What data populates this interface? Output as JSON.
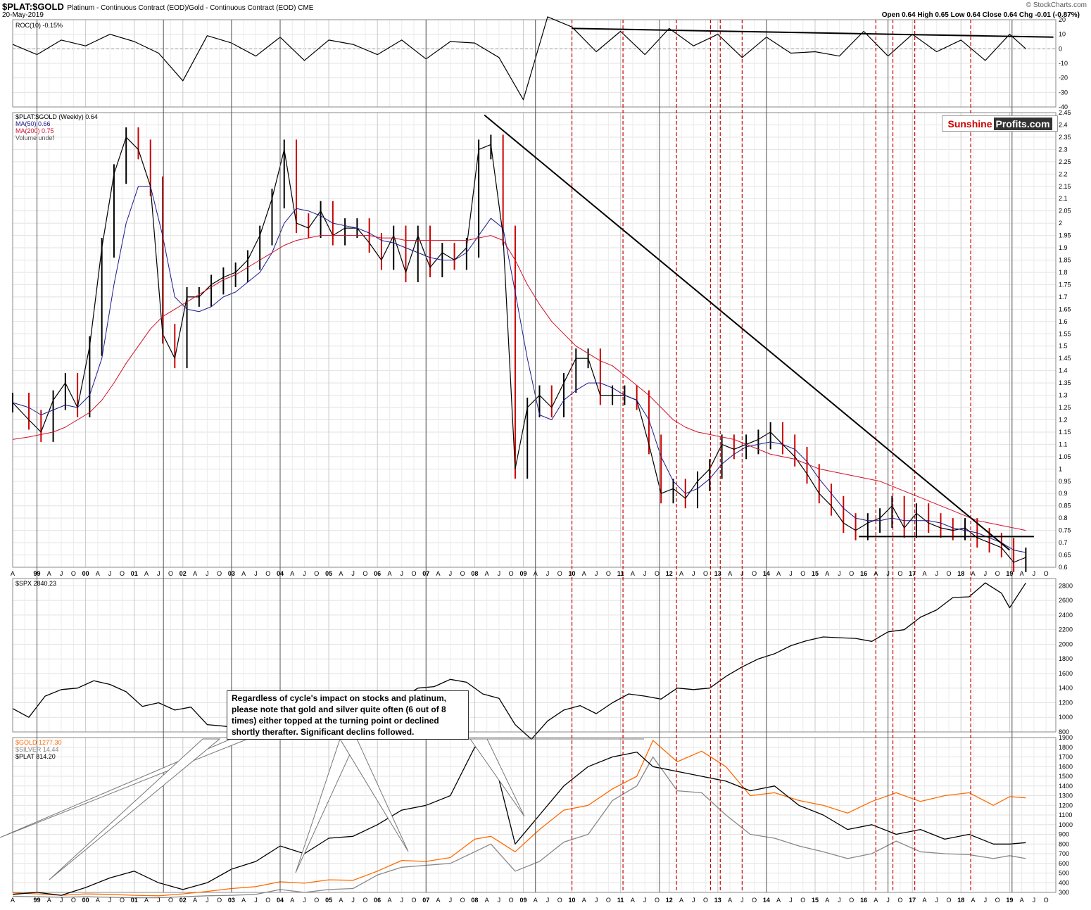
{
  "header": {
    "symbol": "$PLAT:$GOLD",
    "description": "Platinum - Continuous Contract (EOD)/Gold - Continuous Contract (EOD) CME",
    "date": "20-May-2019",
    "watermark": "© StockCharts.com",
    "ohlc": "Open 0.64 High 0.65 Low 0.64 Close 0.64 Chg -0.01 (-0.87%)"
  },
  "logo": {
    "sunshine": "Sunshine",
    "profits": "Profits.com"
  },
  "annotation": "Regardless of cycle's impact on stocks and platinum, please note that gold and silver quite often (6 out of 8 times) either topped at the turning point or declined shortly therafter. Significant declins followed.",
  "colors": {
    "gold": "#ff6a00",
    "silver": "#888888",
    "plat": "#000000",
    "ma50": "#1a1a8c",
    "ma200": "#d0102a",
    "cycle": "#cc0000",
    "down_candle": "#cc0000"
  },
  "chart_data": [
    {
      "type": "line",
      "title": "ROC(10) -0.15%",
      "ylim": [
        -40,
        20
      ],
      "yticks": [
        20,
        10,
        0,
        -10,
        -20,
        -30,
        -40
      ],
      "x": [
        "1998-07",
        "1999-01",
        "1999-07",
        "2000-01",
        "2000-07",
        "2001-01",
        "2001-07",
        "2002-01",
        "2002-07",
        "2003-01",
        "2003-07",
        "2004-01",
        "2004-07",
        "2005-01",
        "2005-07",
        "2006-01",
        "2006-07",
        "2007-01",
        "2007-07",
        "2008-01",
        "2008-07",
        "2009-01",
        "2009-07",
        "2010-01",
        "2010-07",
        "2011-01",
        "2011-07",
        "2012-01",
        "2012-07",
        "2013-01",
        "2013-07",
        "2014-01",
        "2014-07",
        "2015-01",
        "2015-07",
        "2016-01",
        "2016-07",
        "2017-01",
        "2017-07",
        "2018-01",
        "2018-07",
        "2019-01",
        "2019-05"
      ],
      "series": [
        {
          "values": [
            3,
            -4,
            6,
            2,
            10,
            5,
            -3,
            -22,
            9,
            4,
            -5,
            8,
            -8,
            6,
            3,
            -4,
            6,
            -7,
            5,
            4,
            -6,
            -35,
            22,
            15,
            -2,
            12,
            -4,
            14,
            2,
            10,
            -6,
            8,
            -3,
            -2,
            -5,
            12,
            -5,
            10,
            -2,
            6,
            -8,
            10,
            0
          ]
        }
      ],
      "trendline": [
        [
          2010.0,
          14
        ],
        [
          2019.9,
          8
        ]
      ],
      "grid": true
    },
    {
      "type": "line",
      "title": "$PLAT:$GOLD (Weekly) 0.64",
      "legend": [
        "$PLAT:$GOLD (Weekly) 0.64",
        "MA(50) 0.66",
        "MA(200) 0.75",
        "Volume undef"
      ],
      "ylim": [
        0.6,
        2.45
      ],
      "yticks": [
        2.45,
        2.4,
        2.35,
        2.3,
        2.25,
        2.2,
        2.15,
        2.1,
        2.05,
        2.0,
        1.95,
        1.9,
        1.85,
        1.8,
        1.75,
        1.7,
        1.65,
        1.6,
        1.55,
        1.5,
        1.45,
        1.4,
        1.35,
        1.3,
        1.25,
        1.2,
        1.15,
        1.1,
        1.05,
        1.0,
        0.95,
        0.9,
        0.85,
        0.8,
        0.75,
        0.7,
        0.65,
        0.6
      ],
      "x": [
        "1998-07",
        "1998-11",
        "1999-02",
        "1999-05",
        "1999-08",
        "1999-11",
        "2000-02",
        "2000-05",
        "2000-08",
        "2000-11",
        "2001-02",
        "2001-05",
        "2001-08",
        "2001-11",
        "2002-02",
        "2002-05",
        "2002-08",
        "2002-11",
        "2003-02",
        "2003-05",
        "2003-08",
        "2003-11",
        "2004-02",
        "2004-05",
        "2004-08",
        "2004-11",
        "2005-02",
        "2005-05",
        "2005-08",
        "2005-11",
        "2006-02",
        "2006-05",
        "2006-08",
        "2006-11",
        "2007-02",
        "2007-05",
        "2007-08",
        "2007-11",
        "2008-02",
        "2008-05",
        "2008-08",
        "2008-11",
        "2009-02",
        "2009-05",
        "2009-08",
        "2009-11",
        "2010-02",
        "2010-05",
        "2010-08",
        "2010-11",
        "2011-02",
        "2011-05",
        "2011-08",
        "2011-11",
        "2012-02",
        "2012-05",
        "2012-08",
        "2012-11",
        "2013-02",
        "2013-05",
        "2013-08",
        "2013-11",
        "2014-02",
        "2014-05",
        "2014-08",
        "2014-11",
        "2015-02",
        "2015-05",
        "2015-08",
        "2015-11",
        "2016-02",
        "2016-05",
        "2016-08",
        "2016-11",
        "2017-02",
        "2017-05",
        "2017-08",
        "2017-11",
        "2018-02",
        "2018-05",
        "2018-08",
        "2018-11",
        "2019-02",
        "2019-05"
      ],
      "series": [
        {
          "name": "$PLAT:$GOLD",
          "values": [
            1.27,
            1.2,
            1.15,
            1.28,
            1.35,
            1.25,
            1.5,
            1.9,
            2.2,
            2.35,
            2.3,
            2.15,
            1.55,
            1.45,
            1.7,
            1.7,
            1.75,
            1.78,
            1.8,
            1.85,
            1.95,
            2.1,
            2.3,
            2.0,
            1.98,
            2.05,
            1.95,
            1.98,
            1.98,
            1.92,
            1.85,
            1.95,
            1.8,
            1.95,
            1.82,
            1.88,
            1.85,
            1.9,
            2.3,
            2.32,
            1.95,
            1.0,
            1.25,
            1.3,
            1.25,
            1.35,
            1.45,
            1.45,
            1.3,
            1.3,
            1.3,
            1.28,
            1.1,
            0.9,
            0.92,
            0.88,
            0.95,
            1.0,
            1.1,
            1.08,
            1.1,
            1.12,
            1.15,
            1.1,
            1.05,
            0.98,
            0.9,
            0.85,
            0.78,
            0.75,
            0.78,
            0.8,
            0.85,
            0.76,
            0.82,
            0.78,
            0.76,
            0.75,
            0.76,
            0.72,
            0.7,
            0.68,
            0.62,
            0.64
          ]
        },
        {
          "name": "MA(50)",
          "values": [
            1.27,
            1.25,
            1.22,
            1.24,
            1.26,
            1.25,
            1.3,
            1.45,
            1.75,
            2.0,
            2.15,
            2.15,
            1.95,
            1.7,
            1.65,
            1.64,
            1.66,
            1.7,
            1.72,
            1.76,
            1.8,
            1.88,
            2.0,
            2.06,
            2.05,
            2.03,
            2.0,
            1.99,
            1.98,
            1.96,
            1.93,
            1.92,
            1.9,
            1.88,
            1.86,
            1.85,
            1.85,
            1.88,
            1.95,
            2.02,
            1.98,
            1.72,
            1.45,
            1.22,
            1.2,
            1.28,
            1.32,
            1.35,
            1.35,
            1.33,
            1.3,
            1.28,
            1.2,
            1.05,
            0.95,
            0.9,
            0.92,
            0.96,
            1.02,
            1.06,
            1.09,
            1.1,
            1.11,
            1.1,
            1.08,
            1.03,
            0.96,
            0.9,
            0.84,
            0.8,
            0.79,
            0.79,
            0.8,
            0.79,
            0.79,
            0.79,
            0.78,
            0.76,
            0.75,
            0.74,
            0.72,
            0.7,
            0.67,
            0.66
          ]
        },
        {
          "name": "MA(200)",
          "values": [
            1.12,
            1.13,
            1.14,
            1.15,
            1.17,
            1.2,
            1.23,
            1.28,
            1.35,
            1.43,
            1.5,
            1.57,
            1.62,
            1.65,
            1.68,
            1.71,
            1.74,
            1.77,
            1.79,
            1.82,
            1.85,
            1.88,
            1.91,
            1.93,
            1.94,
            1.95,
            1.95,
            1.95,
            1.95,
            1.95,
            1.94,
            1.94,
            1.93,
            1.93,
            1.93,
            1.93,
            1.93,
            1.93,
            1.94,
            1.95,
            1.93,
            1.85,
            1.75,
            1.67,
            1.6,
            1.55,
            1.5,
            1.47,
            1.44,
            1.42,
            1.38,
            1.34,
            1.3,
            1.25,
            1.2,
            1.17,
            1.15,
            1.14,
            1.13,
            1.12,
            1.1,
            1.08,
            1.06,
            1.05,
            1.04,
            1.02,
            1.0,
            0.99,
            0.98,
            0.97,
            0.96,
            0.95,
            0.93,
            0.91,
            0.89,
            0.87,
            0.85,
            0.83,
            0.81,
            0.79,
            0.78,
            0.77,
            0.76,
            0.75
          ]
        }
      ],
      "downtrend_line": [
        [
          2008.2,
          2.44
        ],
        [
          2019.0,
          0.67
        ]
      ],
      "support_line": [
        [
          2015.9,
          0.725
        ],
        [
          2019.5,
          0.725
        ]
      ],
      "grid": true
    },
    {
      "type": "line",
      "title": "$SPX 2840.23",
      "ylim": [
        800,
        2900
      ],
      "yticks": [
        2800,
        2600,
        2400,
        2200,
        2000,
        1800,
        1600,
        1400,
        1200,
        1000,
        800
      ],
      "x": [
        "1998-07",
        "1998-11",
        "1999-03",
        "1999-07",
        "1999-11",
        "2000-03",
        "2000-07",
        "2000-11",
        "2001-03",
        "2001-07",
        "2001-11",
        "2002-03",
        "2002-07",
        "2002-11",
        "2003-03",
        "2003-07",
        "2003-11",
        "2004-03",
        "2004-07",
        "2004-11",
        "2005-03",
        "2005-07",
        "2005-11",
        "2006-03",
        "2006-07",
        "2006-11",
        "2007-03",
        "2007-07",
        "2007-11",
        "2008-03",
        "2008-07",
        "2008-11",
        "2009-03",
        "2009-07",
        "2009-11",
        "2010-03",
        "2010-07",
        "2010-11",
        "2011-03",
        "2011-07",
        "2011-11",
        "2012-03",
        "2012-07",
        "2012-11",
        "2013-03",
        "2013-07",
        "2013-11",
        "2014-03",
        "2014-07",
        "2014-11",
        "2015-03",
        "2015-07",
        "2015-11",
        "2016-03",
        "2016-07",
        "2016-11",
        "2017-03",
        "2017-07",
        "2017-11",
        "2018-03",
        "2018-07",
        "2018-11",
        "2019-01",
        "2019-05"
      ],
      "series": [
        {
          "name": "$SPX",
          "values": [
            1120,
            1000,
            1290,
            1380,
            1400,
            1500,
            1450,
            1350,
            1150,
            1200,
            1100,
            1140,
            900,
            880,
            850,
            1000,
            1050,
            1120,
            1100,
            1180,
            1190,
            1230,
            1240,
            1300,
            1260,
            1400,
            1420,
            1520,
            1480,
            1320,
            1260,
            900,
            700,
            950,
            1100,
            1160,
            1050,
            1200,
            1320,
            1290,
            1250,
            1400,
            1380,
            1400,
            1560,
            1690,
            1800,
            1870,
            1980,
            2050,
            2100,
            2090,
            2080,
            2040,
            2170,
            2200,
            2370,
            2470,
            2640,
            2650,
            2840,
            2700,
            2500,
            2840
          ]
        }
      ],
      "grid": true
    },
    {
      "type": "line",
      "title": "$GOLD / $SILVER / $PLAT",
      "legend": [
        "$GOLD 1277.30",
        "$SILVER 14.44",
        "$PLAT 814.20"
      ],
      "ylim": [
        300,
        1900
      ],
      "yticks": [
        1900,
        1800,
        1700,
        1600,
        1500,
        1400,
        1300,
        1200,
        1100,
        1000,
        900,
        800,
        700,
        600,
        500,
        400,
        300
      ],
      "x": [
        "1998-07",
        "1999-01",
        "1999-07",
        "2000-01",
        "2000-07",
        "2001-01",
        "2001-07",
        "2002-01",
        "2002-07",
        "2003-01",
        "2003-07",
        "2004-01",
        "2004-07",
        "2005-01",
        "2005-07",
        "2006-01",
        "2006-07",
        "2007-01",
        "2007-07",
        "2008-01",
        "2008-05",
        "2008-11",
        "2009-05",
        "2009-11",
        "2010-05",
        "2010-11",
        "2011-05",
        "2011-09",
        "2012-03",
        "2012-09",
        "2013-03",
        "2013-09",
        "2014-03",
        "2014-09",
        "2015-03",
        "2015-09",
        "2016-03",
        "2016-09",
        "2017-03",
        "2017-09",
        "2018-03",
        "2018-09",
        "2019-01",
        "2019-05"
      ],
      "series": [
        {
          "name": "$GOLD",
          "values": [
            295,
            285,
            270,
            285,
            280,
            270,
            265,
            285,
            310,
            340,
            360,
            410,
            395,
            430,
            425,
            520,
            630,
            620,
            660,
            850,
            880,
            720,
            950,
            1150,
            1200,
            1370,
            1500,
            1870,
            1650,
            1760,
            1600,
            1300,
            1330,
            1250,
            1200,
            1120,
            1240,
            1330,
            1240,
            1300,
            1330,
            1200,
            1290,
            1277
          ]
        },
        {
          "name": "$SILVER",
          "values": [
            260,
            255,
            250,
            255,
            250,
            245,
            245,
            255,
            265,
            270,
            280,
            330,
            300,
            330,
            340,
            480,
            560,
            580,
            600,
            720,
            800,
            520,
            620,
            820,
            900,
            1250,
            1400,
            1700,
            1350,
            1330,
            1100,
            900,
            860,
            780,
            720,
            650,
            700,
            830,
            720,
            700,
            690,
            650,
            680,
            650
          ]
        },
        {
          "name": "$PLAT",
          "values": [
            280,
            300,
            270,
            350,
            450,
            520,
            400,
            330,
            400,
            540,
            620,
            780,
            700,
            860,
            880,
            1000,
            1150,
            1200,
            1300,
            1800,
            1800,
            800,
            1100,
            1400,
            1600,
            1700,
            1750,
            1600,
            1550,
            1500,
            1450,
            1350,
            1400,
            1200,
            1100,
            950,
            1000,
            900,
            950,
            850,
            900,
            800,
            800,
            814
          ]
        }
      ],
      "grid": true
    }
  ],
  "x_axis": {
    "year_labels": [
      "99",
      "00",
      "01",
      "02",
      "03",
      "04",
      "05",
      "06",
      "07",
      "08",
      "09",
      "10",
      "11",
      "12",
      "13",
      "14",
      "15",
      "16",
      "17",
      "18",
      "19"
    ],
    "month_letters": [
      "A",
      "J",
      "O"
    ],
    "cycle_lines": [
      2010.0,
      2011.05,
      2012.15,
      2012.85,
      2013.05,
      2013.5,
      2016.25,
      2016.6,
      2017.05,
      2018.2
    ]
  }
}
